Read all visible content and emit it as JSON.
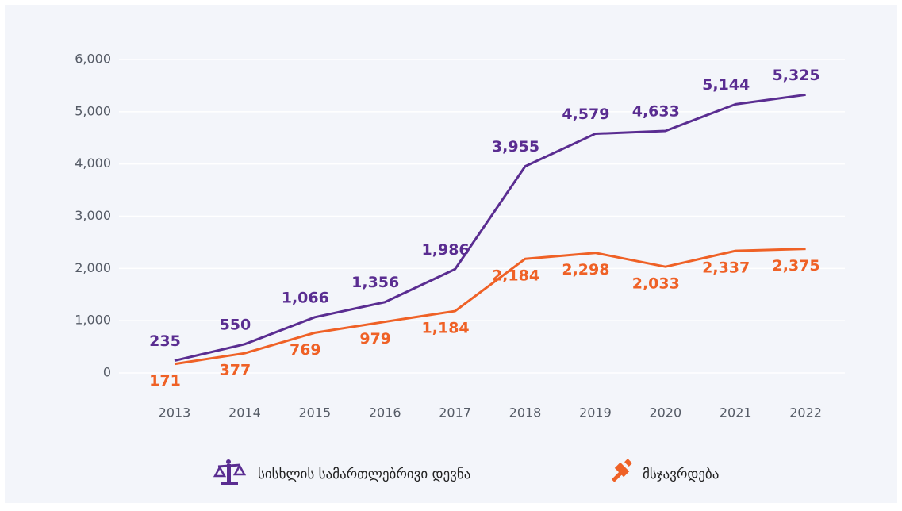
{
  "chart_data": {
    "type": "line",
    "categories": [
      "2013",
      "2014",
      "2015",
      "2016",
      "2017",
      "2018",
      "2019",
      "2020",
      "2021",
      "2022"
    ],
    "series": [
      {
        "name": "სისხლის სამართლებრივი დევნა",
        "color": "#5a2d91",
        "values": [
          235,
          550,
          1066,
          1356,
          1986,
          3955,
          4579,
          4633,
          5144,
          5325
        ],
        "value_labels": [
          "235",
          "550",
          "1,066",
          "1,356",
          "1,986",
          "3,955",
          "4,579",
          "4,633",
          "5,144",
          "5,325"
        ]
      },
      {
        "name": "მსჯავრდება",
        "color": "#ef6126",
        "values": [
          171,
          377,
          769,
          979,
          1184,
          2184,
          2298,
          2033,
          2337,
          2375
        ],
        "value_labels": [
          "171",
          "377",
          "769",
          "979",
          "1,184",
          "2,184",
          "2,298",
          "2,033",
          "2,337",
          "2,375"
        ]
      }
    ],
    "ylim": [
      0,
      6000
    ],
    "yticks": [
      0,
      {
        "value": 1000,
        "label": "1,000"
      },
      {
        "value": 2000,
        "label": "2,000"
      },
      {
        "value": 3000,
        "label": "3,000"
      },
      {
        "value": 4000,
        "label": "4,000"
      },
      {
        "value": 5000,
        "label": "5,000"
      },
      {
        "value": 6000,
        "label": "6,000"
      }
    ],
    "grid": true
  }
}
